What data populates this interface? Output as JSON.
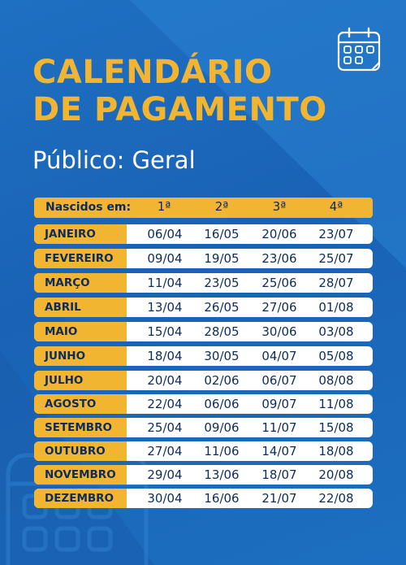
{
  "title_line1": "CALENDÁRIO",
  "title_line2": "DE PAGAMENTO",
  "subtitle": "Público: Geral",
  "header": {
    "label": "Nascidos em:",
    "columns": [
      "1ª",
      "2ª",
      "3ª",
      "4ª"
    ]
  },
  "rows": [
    {
      "month": "JANEIRO",
      "dates": [
        "06/04",
        "16/05",
        "20/06",
        "23/07"
      ]
    },
    {
      "month": "FEVEREIRO",
      "dates": [
        "09/04",
        "19/05",
        "23/06",
        "25/07"
      ]
    },
    {
      "month": "MARÇO",
      "dates": [
        "11/04",
        "23/05",
        "25/06",
        "28/07"
      ]
    },
    {
      "month": "ABRIL",
      "dates": [
        "13/04",
        "26/05",
        "27/06",
        "01/08"
      ]
    },
    {
      "month": "MAIO",
      "dates": [
        "15/04",
        "28/05",
        "30/06",
        "03/08"
      ]
    },
    {
      "month": "JUNHO",
      "dates": [
        "18/04",
        "30/05",
        "04/07",
        "05/08"
      ]
    },
    {
      "month": "JULHO",
      "dates": [
        "20/04",
        "02/06",
        "06/07",
        "08/08"
      ]
    },
    {
      "month": "AGOSTO",
      "dates": [
        "22/04",
        "06/06",
        "09/07",
        "11/08"
      ]
    },
    {
      "month": "SETEMBRO",
      "dates": [
        "25/04",
        "09/06",
        "11/07",
        "15/08"
      ]
    },
    {
      "month": "OUTUBRO",
      "dates": [
        "27/04",
        "11/06",
        "14/07",
        "18/08"
      ]
    },
    {
      "month": "NOVEMBRO",
      "dates": [
        "29/04",
        "13/06",
        "18/07",
        "20/08"
      ]
    },
    {
      "month": "DEZEMBRO",
      "dates": [
        "30/04",
        "16/06",
        "21/07",
        "22/08"
      ]
    }
  ],
  "colors": {
    "background": "#1a63b6",
    "accent": "#f2b531",
    "text_dark": "#0d2b5c",
    "white": "#ffffff"
  },
  "icons": [
    "calendar-icon",
    "calendar-watermark-icon"
  ]
}
